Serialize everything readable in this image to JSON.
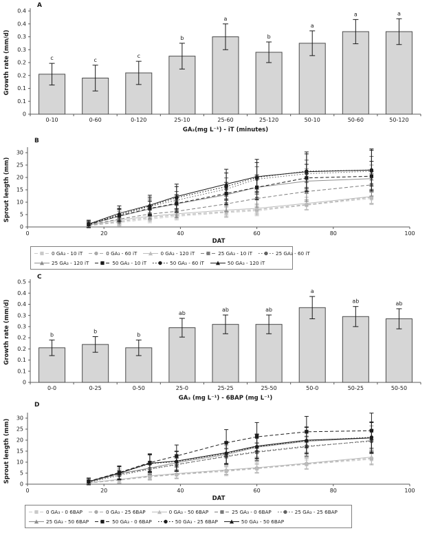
{
  "figure": {
    "background": "#ffffff"
  },
  "chart_data": [
    {
      "panel_label": "A",
      "type": "bar",
      "ylabel": "Growth rate (mm/d)",
      "xlabel": "GA₃(mg L⁻¹) - iT (minutes)",
      "ymax": 0.4,
      "ytick_step": 0.05,
      "ytick_labels": [
        "0",
        "0.1",
        "0.1",
        "0.2",
        "0.2",
        "0.3",
        "0.3",
        "0.4",
        "0.4"
      ],
      "categories": [
        "0-10",
        "0-60",
        "0-120",
        "25-10",
        "25-60",
        "25-120",
        "50-10",
        "50-60",
        "50-120"
      ],
      "values": [
        0.155,
        0.14,
        0.16,
        0.225,
        0.3,
        0.24,
        0.275,
        0.32,
        0.32
      ],
      "errors": [
        0.042,
        0.05,
        0.045,
        0.05,
        0.05,
        0.04,
        0.048,
        0.047,
        0.05
      ],
      "letters": [
        "c",
        "c",
        "c",
        "b",
        "a",
        "b",
        "a",
        "a",
        "a"
      ],
      "bar_fill": "#d6d6d6",
      "bar_stroke": "#4a4a4a",
      "grid": false
    },
    {
      "panel_label": "B",
      "type": "line",
      "ylabel": "Sprout length (mm)",
      "xlabel": "DAT",
      "xlim": [
        0,
        100
      ],
      "xticks": [
        0,
        20,
        40,
        60,
        80,
        100
      ],
      "ylim": [
        0,
        30
      ],
      "yticks": [
        0,
        5,
        10,
        15,
        20,
        25,
        30
      ],
      "x": [
        16,
        24,
        32,
        39,
        52,
        60,
        73,
        90
      ],
      "legend_rows": [
        5,
        4
      ],
      "legend_position": "bottom",
      "series": [
        {
          "label": "0 GA₃ - 10 iT",
          "color": "#c9c9c9",
          "marker": "square",
          "line": "dashed",
          "values": [
            0.5,
            1.8,
            3.2,
            4.3,
            5.8,
            6.5,
            8.8,
            11.5
          ],
          "err": [
            0.8,
            1.5,
            1.5,
            1.5,
            2,
            2,
            2,
            2.5
          ]
        },
        {
          "label": "0 GA₃ - 60 iT",
          "color": "#a9a9a9",
          "marker": "circle",
          "line": "dashed",
          "values": [
            0.5,
            2.2,
            3.8,
            4.8,
            6.2,
            7,
            9,
            12
          ],
          "err": [
            0.8,
            1.5,
            1.5,
            1.5,
            2,
            2,
            2,
            2.5
          ]
        },
        {
          "label": "0 GA₃ - 120 iT",
          "color": "#bcbcbc",
          "marker": "triangle",
          "line": "solid",
          "values": [
            0.7,
            2.8,
            4.3,
            5.3,
            6.8,
            7.5,
            9.5,
            12.3
          ],
          "err": [
            0.8,
            1.5,
            1.5,
            2,
            2,
            2,
            2.5,
            3
          ]
        },
        {
          "label": "25 GA₃ - 10 iT",
          "color": "#7b7b7b",
          "marker": "square",
          "line": "dashed",
          "values": [
            0.8,
            3.2,
            5.2,
            6.3,
            9.3,
            11.5,
            14.3,
            17
          ],
          "err": [
            1,
            2,
            2,
            2.5,
            3,
            3.5,
            4,
            4.5
          ]
        },
        {
          "label": "25 GA₃ - 60 iT",
          "color": "#606060",
          "marker": "circle",
          "line": "dotted",
          "values": [
            1,
            4.8,
            8.3,
            10.8,
            15.3,
            19.3,
            21.5,
            22.5
          ],
          "err": [
            1.2,
            2.5,
            3,
            3.5,
            4.5,
            5,
            5.5,
            6
          ]
        },
        {
          "label": "25 GA₃ - 120 iT",
          "color": "#8e8e8e",
          "marker": "triangle",
          "line": "solid",
          "values": [
            1,
            4.3,
            7.3,
            9.3,
            13,
            16,
            18.5,
            19.5
          ],
          "err": [
            1,
            2,
            3,
            3.5,
            4,
            4.5,
            5,
            5.5
          ]
        },
        {
          "label": "50 GA₃ - 10 iT",
          "color": "#1c1c1c",
          "marker": "square",
          "line": "dashed",
          "values": [
            1,
            4.5,
            7.5,
            9.5,
            13.5,
            16,
            19.8,
            20.5
          ],
          "err": [
            1.2,
            2.5,
            3,
            3.5,
            4.5,
            5,
            5.5,
            6
          ]
        },
        {
          "label": "50 GA₃ - 60 iT",
          "color": "#1c1c1c",
          "marker": "circle",
          "line": "dotted",
          "values": [
            1.2,
            5,
            8.5,
            11.8,
            16.3,
            20,
            22.5,
            23
          ],
          "err": [
            1.5,
            2.5,
            3.5,
            4.5,
            5.5,
            6,
            7,
            8
          ]
        },
        {
          "label": "50 GA₃ - 120 iT",
          "color": "#1c1c1c",
          "marker": "triangle",
          "line": "solid",
          "values": [
            1.2,
            5.5,
            8.8,
            12.3,
            17.3,
            20.3,
            22.3,
            23
          ],
          "err": [
            1.5,
            3,
            4,
            5,
            6,
            7,
            8,
            8.5
          ]
        }
      ]
    },
    {
      "panel_label": "C",
      "type": "bar",
      "ylabel": "Growth rate (mm/d)",
      "xlabel": "GA₃ (mg L⁻¹) - 6BAP (mg L⁻¹)",
      "ymax": 0.45,
      "ytick_step": 0.05,
      "ytick_labels": [
        "0",
        "0.1",
        "0.1",
        "0.2",
        "0.2",
        "0.3",
        "0.3",
        "0.4",
        "0.4",
        "0.5"
      ],
      "categories": [
        "0-0",
        "0-25",
        "0-50",
        "25-0",
        "25-25",
        "25-50",
        "50-0",
        "50-25",
        "50-50"
      ],
      "values": [
        0.155,
        0.17,
        0.155,
        0.245,
        0.26,
        0.26,
        0.335,
        0.295,
        0.285
      ],
      "errors": [
        0.035,
        0.035,
        0.035,
        0.042,
        0.042,
        0.042,
        0.05,
        0.045,
        0.045
      ],
      "letters": [
        "b",
        "b",
        "b",
        "ab",
        "ab",
        "ab",
        "a",
        "ab",
        "ab"
      ],
      "bar_fill": "#d6d6d6",
      "bar_stroke": "#4a4a4a",
      "grid": false
    },
    {
      "panel_label": "D",
      "type": "line",
      "ylabel": "Sprout length (mm)",
      "xlabel": "DAT",
      "xlim": [
        0,
        100
      ],
      "xticks": [
        0,
        20,
        40,
        60,
        80,
        100
      ],
      "ylim": [
        0,
        30
      ],
      "yticks": [
        0,
        5,
        10,
        15,
        20,
        25,
        30
      ],
      "x": [
        16,
        24,
        32,
        39,
        52,
        60,
        73,
        90
      ],
      "legend_rows": [
        5,
        4
      ],
      "legend_position": "bottom",
      "series": [
        {
          "label": "0 GA₃ - 0 6BAP",
          "color": "#c9c9c9",
          "marker": "square",
          "line": "dashed",
          "values": [
            0.5,
            1.8,
            3.3,
            4.3,
            5.8,
            7,
            9,
            11.3
          ],
          "err": [
            0.8,
            1.5,
            1.5,
            1.5,
            2,
            2,
            2,
            2.5
          ]
        },
        {
          "label": "0 GA₃ - 25 6BAP",
          "color": "#a9a9a9",
          "marker": "circle",
          "line": "dashed",
          "values": [
            0.5,
            2,
            3.5,
            4.5,
            6.2,
            7.3,
            9.3,
            11.8
          ],
          "err": [
            0.8,
            1.5,
            1.5,
            2,
            2,
            2,
            2.5,
            3
          ]
        },
        {
          "label": "0 GA₃ - 50 6BAP",
          "color": "#bcbcbc",
          "marker": "triangle",
          "line": "solid",
          "values": [
            0.7,
            2.2,
            3.8,
            4.8,
            6.5,
            7.5,
            9.5,
            12.3
          ],
          "err": [
            0.8,
            1.5,
            1.5,
            2,
            2,
            2.5,
            2.5,
            3
          ]
        },
        {
          "label": "25 GA₃ - 0 6BAP",
          "color": "#7b7b7b",
          "marker": "square",
          "line": "dashed",
          "values": [
            1,
            4.5,
            7,
            9,
            12.5,
            14.5,
            17,
            19.8
          ],
          "err": [
            1,
            2,
            2.5,
            3,
            3.5,
            4,
            4.5,
            5
          ]
        },
        {
          "label": "25 GA₃ - 25 6BAP",
          "color": "#606060",
          "marker": "circle",
          "line": "dotted",
          "values": [
            0.8,
            4,
            6.8,
            8.8,
            12.8,
            14.8,
            17.3,
            19.5
          ],
          "err": [
            1,
            2,
            2.5,
            3,
            3.5,
            4,
            4.5,
            5
          ]
        },
        {
          "label": "25 GA₃ - 50 6BAP",
          "color": "#8e8e8e",
          "marker": "triangle",
          "line": "solid",
          "values": [
            1,
            4.8,
            7.3,
            9.8,
            13.5,
            16.8,
            19.5,
            21
          ],
          "err": [
            1.2,
            2.5,
            3,
            3.5,
            4,
            4.5,
            5,
            5.5
          ]
        },
        {
          "label": "50 GA₃ - 0 6BAP",
          "color": "#1c1c1c",
          "marker": "square",
          "line": "dashed",
          "values": [
            1.3,
            5.3,
            9.8,
            12.8,
            18.8,
            21.5,
            23.8,
            24.3
          ],
          "err": [
            1.5,
            3,
            4,
            5,
            6,
            6.5,
            7,
            8
          ]
        },
        {
          "label": "50 GA₃ - 25 6BAP",
          "color": "#1c1c1c",
          "marker": "circle",
          "line": "dotted",
          "values": [
            1.2,
            5,
            9.3,
            10.3,
            14,
            17,
            19.8,
            21.3
          ],
          "err": [
            1.5,
            3,
            4,
            4.5,
            5,
            5.5,
            6,
            7
          ]
        },
        {
          "label": "50 GA₃ - 50 6BAP",
          "color": "#1c1c1c",
          "marker": "triangle",
          "line": "solid",
          "values": [
            1.2,
            5,
            9.5,
            10.5,
            14.3,
            17.3,
            20,
            21
          ],
          "err": [
            1.5,
            3,
            4,
            4.5,
            5,
            5.5,
            6,
            7
          ]
        }
      ]
    }
  ]
}
